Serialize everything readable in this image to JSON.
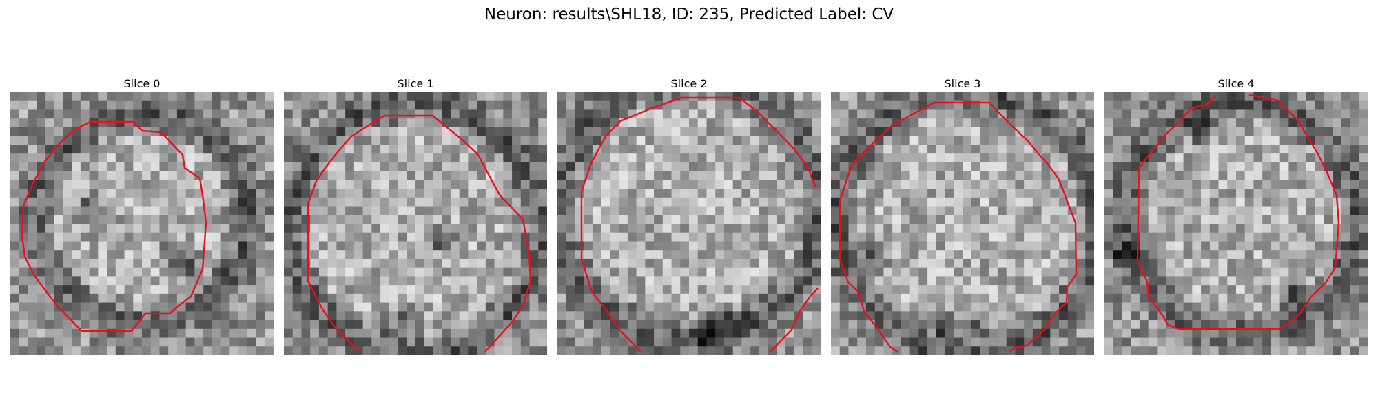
{
  "figure": {
    "title": "Neuron: results\\SHL18, ID: 235, Predicted Label: CV"
  },
  "panels": [
    {
      "title": "Slice 0",
      "seed": 11,
      "darkRing": [
        0.5,
        0.48,
        0.4
      ],
      "darkSpots": [
        [
          0.67,
          0.66
        ],
        [
          0.62,
          0.62
        ],
        [
          0.3,
          0.45
        ]
      ]
    },
    {
      "title": "Slice 1",
      "seed": 23,
      "darkRing": [
        0.5,
        0.52,
        0.48
      ],
      "darkSpots": [
        [
          0.6,
          0.56
        ],
        [
          0.45,
          0.88
        ]
      ]
    },
    {
      "title": "Slice 2",
      "seed": 37,
      "darkRing": [
        0.5,
        0.45,
        0.5
      ],
      "darkSpots": [
        [
          0.62,
          0.9
        ],
        [
          0.55,
          0.92
        ],
        [
          0.7,
          0.88
        ]
      ]
    },
    {
      "title": "Slice 3",
      "seed": 41,
      "darkRing": [
        0.52,
        0.5,
        0.5
      ],
      "darkSpots": [
        [
          0.17,
          0.62
        ],
        [
          0.55,
          0.88
        ],
        [
          0.45,
          0.9
        ]
      ]
    },
    {
      "title": "Slice 4",
      "seed": 53,
      "darkRing": [
        0.52,
        0.48,
        0.44
      ],
      "darkSpots": [
        [
          0.37,
          0.15
        ],
        [
          0.08,
          0.62
        ],
        [
          0.73,
          0.77
        ]
      ]
    }
  ],
  "contour_color": "#e8101a"
}
